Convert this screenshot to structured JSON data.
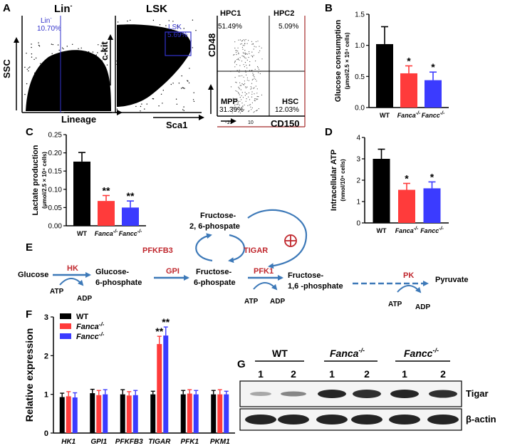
{
  "panel_letters": {
    "A": "A",
    "B": "B",
    "C": "C",
    "D": "D",
    "E": "E",
    "F": "F",
    "G": "G"
  },
  "flow": {
    "lin_title": "Lin",
    "lin_title_sup": "-",
    "lin_gate": "Lin",
    "lin_gate_sup": "-",
    "lin_pct": "10.70%",
    "lin_x": "Lineage",
    "lin_y": "SSC",
    "lsk_title": "LSK",
    "lsk_gate": "LSK",
    "lsk_pct": "5.69%",
    "lsk_x": "Sca1",
    "lsk_y": "c-kit",
    "hpc1": "HPC1",
    "hpc1_pct": "51.49%",
    "hpc2": "HPC2",
    "hpc2_pct": "5.09%",
    "mpp": "MPP",
    "mpp_pct": "31.39%",
    "hsc": "HSC",
    "hsc_pct": "12.03%",
    "q_x": "CD150",
    "q_y": "CD48",
    "tick1": "-10",
    "tick2": "10"
  },
  "chart_data": [
    {
      "panel": "B",
      "type": "bar",
      "categories": [
        "WT",
        "Fanca-/-",
        "Fancc-/-"
      ],
      "values": [
        1.02,
        0.55,
        0.44
      ],
      "errors": [
        0.28,
        0.12,
        0.13
      ],
      "colors": [
        "#000000",
        "#ff3b3b",
        "#3b3bff"
      ],
      "significance": [
        "",
        "*",
        "*"
      ],
      "ylabel": "Glucose consumption",
      "ylabel_unit": "(μmol/2.5 × 10⁴ cells)",
      "yticks": [
        "0.0",
        "0.5",
        "1.0",
        "1.5"
      ],
      "ylim": [
        0,
        1.5
      ]
    },
    {
      "panel": "C",
      "type": "bar",
      "categories": [
        "WT",
        "Fanca-/-",
        "Fancc-/-"
      ],
      "values": [
        0.176,
        0.068,
        0.05
      ],
      "errors": [
        0.025,
        0.015,
        0.018
      ],
      "colors": [
        "#000000",
        "#ff3b3b",
        "#3b3bff"
      ],
      "significance": [
        "",
        "**",
        "**"
      ],
      "ylabel": "Lactate production",
      "ylabel_unit": "(μmol/2.5 × 10⁴ cells)",
      "yticks": [
        "0.00",
        "0.05",
        "0.10",
        "0.15",
        "0.20",
        "0.25"
      ],
      "ylim": [
        0,
        0.25
      ]
    },
    {
      "panel": "D",
      "type": "bar",
      "categories": [
        "WT",
        "Fanca-/-",
        "Fancc-/-"
      ],
      "values": [
        3.0,
        1.55,
        1.62
      ],
      "errors": [
        0.45,
        0.3,
        0.3
      ],
      "colors": [
        "#000000",
        "#ff3b3b",
        "#3b3bff"
      ],
      "significance": [
        "",
        "*",
        "*"
      ],
      "ylabel": "Intracellular ATP",
      "ylabel_unit": "(nmol/10⁶ cells)",
      "yticks": [
        "0",
        "1",
        "2",
        "3",
        "4"
      ],
      "ylim": [
        0,
        4
      ]
    },
    {
      "panel": "F",
      "type": "bar",
      "categories": [
        "HK1",
        "GPI1",
        "PFKFB3",
        "TIGAR",
        "PFK1",
        "PKM1"
      ],
      "series": [
        {
          "name": "WT",
          "values": [
            0.93,
            1.03,
            1.0,
            1.0,
            1.0,
            1.0
          ],
          "errors": [
            0.1,
            0.1,
            0.12,
            0.08,
            0.1,
            0.1
          ],
          "color": "#000000"
        },
        {
          "name": "Fanca",
          "values": [
            0.95,
            0.98,
            0.97,
            2.3,
            1.02,
            1.0
          ],
          "errors": [
            0.12,
            0.12,
            0.1,
            0.2,
            0.1,
            0.12
          ],
          "color": "#ff3b3b"
        },
        {
          "name": "Fancc",
          "values": [
            0.92,
            1.0,
            0.98,
            2.52,
            1.0,
            1.0
          ],
          "errors": [
            0.12,
            0.12,
            0.12,
            0.22,
            0.1,
            0.08
          ],
          "color": "#3b3bff"
        }
      ],
      "legend_sup": "-/-",
      "significance": {
        "TIGAR": [
          "",
          "**",
          "**"
        ]
      },
      "ylabel": "Relative expression",
      "yticks": [
        "0",
        "1",
        "2",
        "3"
      ],
      "ylim": [
        0,
        3
      ]
    }
  ],
  "pathway": {
    "glucose": "Glucose",
    "hk": "HK",
    "g6p_1": "Glucose-",
    "g6p_2": "6-phosphate",
    "gpi": "GPI",
    "f6p_1": "Fructose-",
    "f6p_2": "6-phospate",
    "pfk1": "PFK1",
    "f16p_1": "Fructose-",
    "f16p_2": "1,6 -phosphate",
    "pk": "PK",
    "pyruvate": "Pyruvate",
    "f26p_1": "Fructose-",
    "f26p_2": "2, 6-phospate",
    "pfkfb3": "PFKFB3",
    "tigar": "TIGAR",
    "atp": "ATP",
    "adp": "ADP"
  },
  "western": {
    "wt": "WT",
    "fanca": "Fanca",
    "fancc": "Fancc",
    "sup": "-/-",
    "lanes": [
      "1",
      "2",
      "1",
      "2",
      "1",
      "2"
    ],
    "row1": "Tigar",
    "row2": "β-actin"
  },
  "colors": {
    "red": "#ff3b3b",
    "blue": "#3b3bff",
    "enzyme_red": "#c0272d",
    "arrow_blue": "#3d79b8",
    "flow_blue": "#3333cc",
    "quad_red": "#a52a2a"
  }
}
